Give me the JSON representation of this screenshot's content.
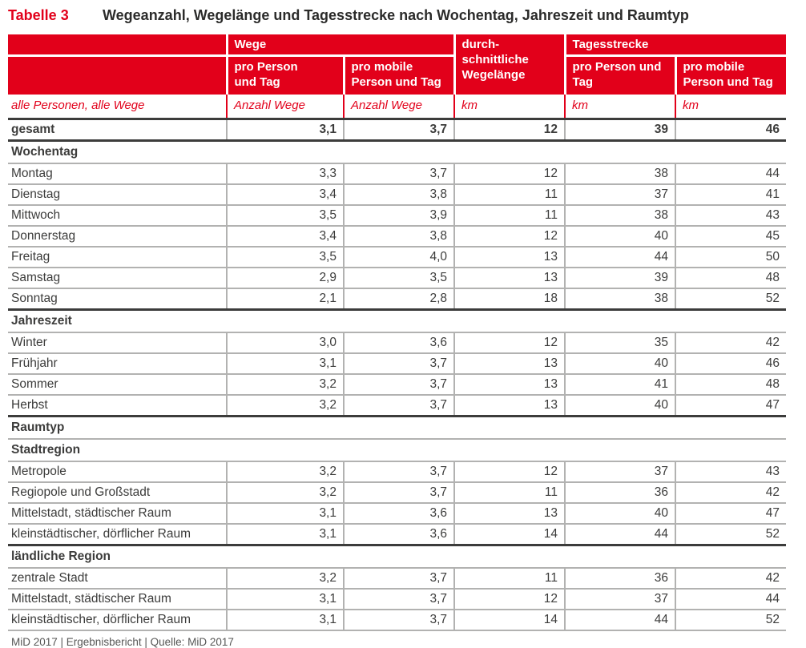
{
  "title": {
    "label": "Tabelle 3",
    "text": "Wegeanzahl, Wegelänge und Tagesstrecke nach Wochentag, Jahreszeit und Raumtyp"
  },
  "colors": {
    "accent_red": "#e2001a",
    "text_dark": "#3c3c3b",
    "grid_gray": "#b2b2b1",
    "footer_gray": "#575756"
  },
  "header": {
    "groups": {
      "wege": "Wege",
      "wegelaenge": "durch-\nschnittliche\nWegelänge",
      "tagesstrecke": "Tagesstrecke"
    },
    "subheads": [
      "pro Person\nund Tag",
      "pro mobile\nPerson und Tag",
      "pro Person und\nTag",
      "pro mobile\nPerson und Tag"
    ]
  },
  "meta": {
    "label": "alle Personen, alle Wege",
    "units": [
      "Anzahl Wege",
      "Anzahl Wege",
      "km",
      "km",
      "km"
    ]
  },
  "table": {
    "rows": [
      {
        "type": "total",
        "label": "gesamt",
        "values": [
          "3,1",
          "3,7",
          "12",
          "39",
          "46"
        ]
      },
      {
        "type": "section",
        "label": "Wochentag"
      },
      {
        "type": "data",
        "label": "Montag",
        "values": [
          "3,3",
          "3,7",
          "12",
          "38",
          "44"
        ]
      },
      {
        "type": "data",
        "label": "Dienstag",
        "values": [
          "3,4",
          "3,8",
          "11",
          "37",
          "41"
        ]
      },
      {
        "type": "data",
        "label": "Mittwoch",
        "values": [
          "3,5",
          "3,9",
          "11",
          "38",
          "43"
        ]
      },
      {
        "type": "data",
        "label": "Donnerstag",
        "values": [
          "3,4",
          "3,8",
          "12",
          "40",
          "45"
        ]
      },
      {
        "type": "data",
        "label": "Freitag",
        "values": [
          "3,5",
          "4,0",
          "13",
          "44",
          "50"
        ]
      },
      {
        "type": "data",
        "label": "Samstag",
        "values": [
          "2,9",
          "3,5",
          "13",
          "39",
          "48"
        ]
      },
      {
        "type": "data",
        "label": "Sonntag",
        "values": [
          "2,1",
          "2,8",
          "18",
          "38",
          "52"
        ],
        "end": true
      },
      {
        "type": "section",
        "label": "Jahreszeit"
      },
      {
        "type": "data",
        "label": "Winter",
        "values": [
          "3,0",
          "3,6",
          "12",
          "35",
          "42"
        ]
      },
      {
        "type": "data",
        "label": "Frühjahr",
        "values": [
          "3,1",
          "3,7",
          "13",
          "40",
          "46"
        ]
      },
      {
        "type": "data",
        "label": "Sommer",
        "values": [
          "3,2",
          "3,7",
          "13",
          "41",
          "48"
        ]
      },
      {
        "type": "data",
        "label": "Herbst",
        "values": [
          "3,2",
          "3,7",
          "13",
          "40",
          "47"
        ],
        "end": true
      },
      {
        "type": "section",
        "label": "Raumtyp"
      },
      {
        "type": "section",
        "label": "Stadtregion"
      },
      {
        "type": "data",
        "label": "Metropole",
        "values": [
          "3,2",
          "3,7",
          "12",
          "37",
          "43"
        ]
      },
      {
        "type": "data",
        "label": "Regiopole und Großstadt",
        "values": [
          "3,2",
          "3,7",
          "11",
          "36",
          "42"
        ]
      },
      {
        "type": "data",
        "label": "Mittelstadt, städtischer Raum",
        "values": [
          "3,1",
          "3,6",
          "13",
          "40",
          "47"
        ]
      },
      {
        "type": "data",
        "label": "kleinstädtischer, dörflicher Raum",
        "values": [
          "3,1",
          "3,6",
          "14",
          "44",
          "52"
        ],
        "end": true
      },
      {
        "type": "section",
        "label": "ländliche Region"
      },
      {
        "type": "data",
        "label": "zentrale Stadt",
        "values": [
          "3,2",
          "3,7",
          "11",
          "36",
          "42"
        ]
      },
      {
        "type": "data",
        "label": "Mittelstadt, städtischer Raum",
        "values": [
          "3,1",
          "3,7",
          "12",
          "37",
          "44"
        ]
      },
      {
        "type": "data",
        "label": "kleinstädtischer, dörflicher Raum",
        "values": [
          "3,1",
          "3,7",
          "14",
          "44",
          "52"
        ]
      }
    ]
  },
  "chart_data": {
    "type": "table",
    "title": "Wegeanzahl, Wegelänge und Tagesstrecke nach Wochentag, Jahreszeit und Raumtyp",
    "columns": [
      "alle Personen, alle Wege",
      "Wege pro Person und Tag (Anzahl Wege)",
      "Wege pro mobile Person und Tag (Anzahl Wege)",
      "durchschnittliche Wegelänge (km)",
      "Tagesstrecke pro Person und Tag (km)",
      "Tagesstrecke pro mobile Person und Tag (km)"
    ],
    "rows": [
      [
        "gesamt",
        3.1,
        3.7,
        12,
        39,
        46
      ],
      [
        "Montag",
        3.3,
        3.7,
        12,
        38,
        44
      ],
      [
        "Dienstag",
        3.4,
        3.8,
        11,
        37,
        41
      ],
      [
        "Mittwoch",
        3.5,
        3.9,
        11,
        38,
        43
      ],
      [
        "Donnerstag",
        3.4,
        3.8,
        12,
        40,
        45
      ],
      [
        "Freitag",
        3.5,
        4.0,
        13,
        44,
        50
      ],
      [
        "Samstag",
        2.9,
        3.5,
        13,
        39,
        48
      ],
      [
        "Sonntag",
        2.1,
        2.8,
        18,
        38,
        52
      ],
      [
        "Winter",
        3.0,
        3.6,
        12,
        35,
        42
      ],
      [
        "Frühjahr",
        3.1,
        3.7,
        13,
        40,
        46
      ],
      [
        "Sommer",
        3.2,
        3.7,
        13,
        41,
        48
      ],
      [
        "Herbst",
        3.2,
        3.7,
        13,
        40,
        47
      ],
      [
        "Metropole",
        3.2,
        3.7,
        12,
        37,
        43
      ],
      [
        "Regiopole und Großstadt",
        3.2,
        3.7,
        11,
        36,
        42
      ],
      [
        "Mittelstadt, städtischer Raum (Stadtregion)",
        3.1,
        3.6,
        13,
        40,
        47
      ],
      [
        "kleinstädtischer, dörflicher Raum (Stadtregion)",
        3.1,
        3.6,
        14,
        44,
        52
      ],
      [
        "zentrale Stadt",
        3.2,
        3.7,
        11,
        36,
        42
      ],
      [
        "Mittelstadt, städtischer Raum (ländliche Region)",
        3.1,
        3.7,
        12,
        37,
        44
      ],
      [
        "kleinstädtischer, dörflicher Raum (ländliche Region)",
        3.1,
        3.7,
        14,
        44,
        52
      ]
    ]
  },
  "footer": "MiD 2017 | Ergebnisbericht | Quelle: MiD 2017"
}
